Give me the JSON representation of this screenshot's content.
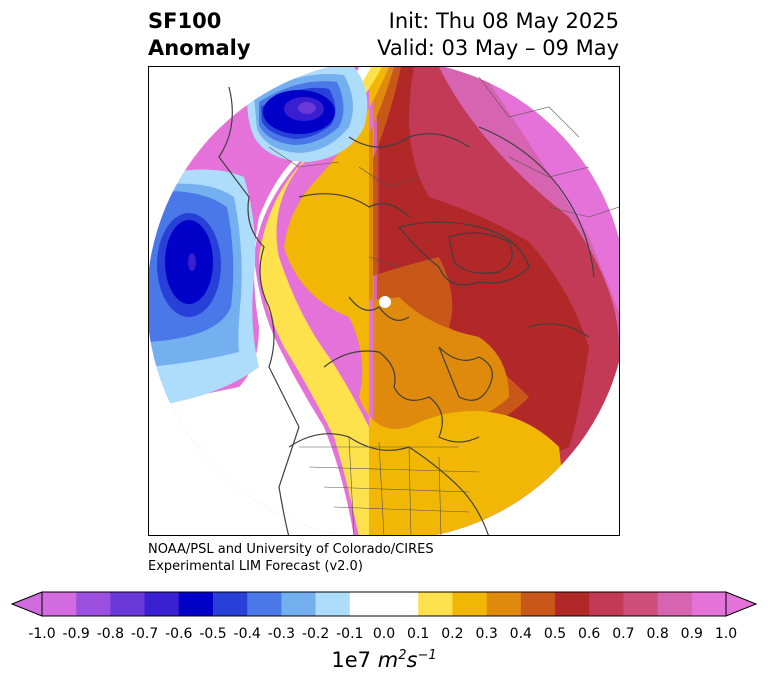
{
  "title": {
    "variable": "SF100",
    "subtitle": "Anomaly",
    "init": "Init: Thu 08 May 2025",
    "valid": "Valid: 03 May – 09 May"
  },
  "credit": {
    "line1": "NOAA/PSL and University of Colorado/CIRES",
    "line2": "Experimental LIM Forecast (v2.0)"
  },
  "colorbar": {
    "units_prefix": "1e7",
    "units_base": "m",
    "units_base_exp": "2",
    "units_s": "s",
    "units_s_exp": "−1",
    "levels": [
      "-1.0",
      "-0.9",
      "-0.8",
      "-0.7",
      "-0.6",
      "-0.5",
      "-0.4",
      "-0.3",
      "-0.2",
      "-0.1",
      "0.0",
      "0.1",
      "0.2",
      "0.3",
      "0.4",
      "0.5",
      "0.6",
      "0.7",
      "0.8",
      "0.9",
      "1.0"
    ],
    "colors": [
      "#d36be0",
      "#9c50e0",
      "#6a37d9",
      "#3a1fd0",
      "#0000c8",
      "#2740d8",
      "#4a78e8",
      "#74b0f0",
      "#aedcfb",
      "#ffffff",
      "#ffffff",
      "#fde24e",
      "#f2b705",
      "#df8a0d",
      "#c8571a",
      "#b22727",
      "#c23a55",
      "#cd4e78",
      "#d764b0",
      "#e472d8"
    ],
    "extend_low": "#d36be0",
    "extend_high": "#e472d8"
  }
}
